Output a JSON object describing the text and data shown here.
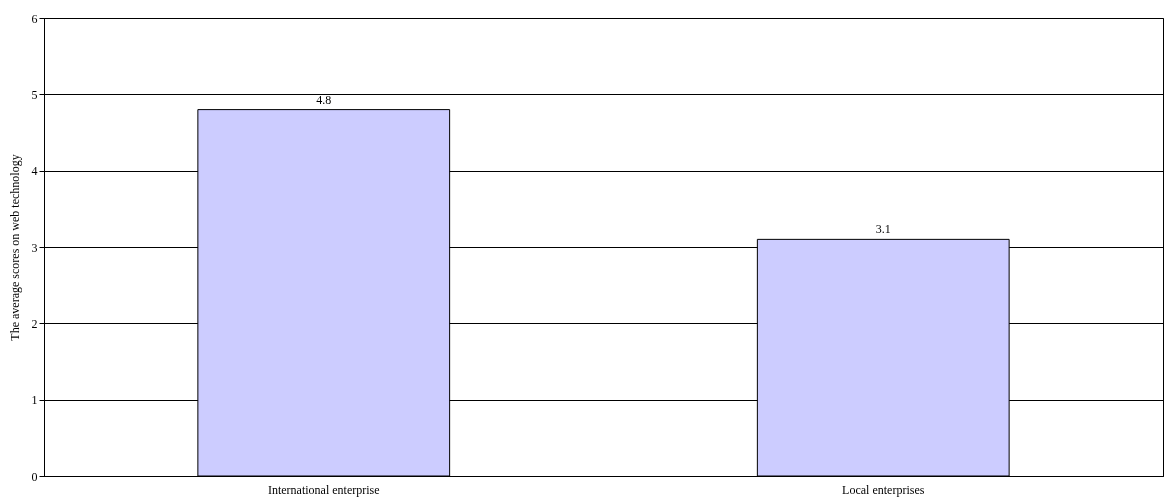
{
  "chart_data": {
    "type": "bar",
    "ylabel": "The average scores on web technology",
    "categories": [
      "International enterprise",
      "Local enterprises"
    ],
    "values": [
      4.8,
      3.1
    ],
    "color": "#ccccff",
    "ylim": [
      0,
      6
    ],
    "yticks": [
      0,
      1,
      2,
      3,
      4,
      5,
      6
    ],
    "grid": "y",
    "data_labels": true
  }
}
